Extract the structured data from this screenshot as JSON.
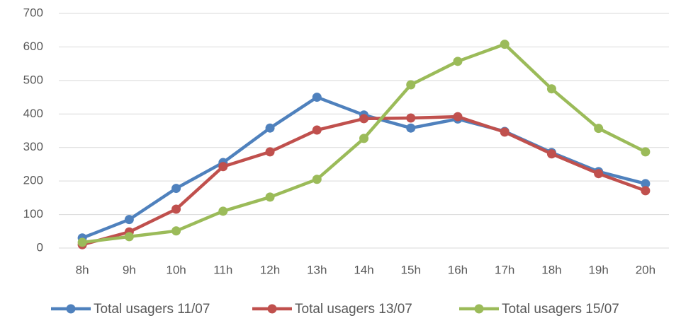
{
  "chart_data": {
    "type": "line",
    "categories": [
      "8h",
      "9h",
      "10h",
      "11h",
      "12h",
      "13h",
      "14h",
      "15h",
      "16h",
      "17h",
      "18h",
      "19h",
      "20h"
    ],
    "series": [
      {
        "name": "Total usagers 11/07",
        "color": "#4f81bd",
        "values": [
          30,
          85,
          178,
          255,
          358,
          450,
          397,
          358,
          385,
          348,
          285,
          228,
          192
        ]
      },
      {
        "name": "Total usagers 13/07",
        "color": "#c0504d",
        "values": [
          10,
          48,
          116,
          243,
          287,
          352,
          386,
          388,
          392,
          346,
          281,
          222,
          171
        ]
      },
      {
        "name": "Total usagers 15/07",
        "color": "#9bbb59",
        "values": [
          17,
          34,
          51,
          110,
          152,
          205,
          327,
          487,
          557,
          608,
          475,
          357,
          287
        ]
      }
    ],
    "ylim": [
      0,
      700
    ],
    "yticks": [
      0,
      100,
      200,
      300,
      400,
      500,
      600,
      700
    ],
    "grid": true,
    "legend": "bottom"
  }
}
